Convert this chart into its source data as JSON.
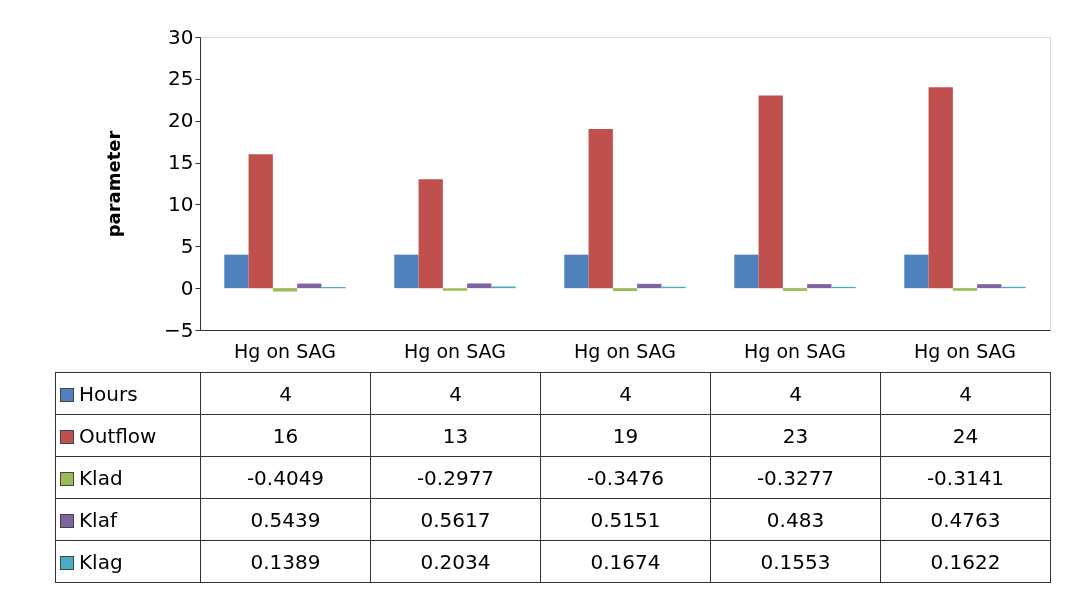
{
  "chart_data": {
    "type": "bar",
    "ylabel": "parameter",
    "categories": [
      "Hg on SAG",
      "Hg on SAG",
      "Hg on SAG",
      "Hg on SAG",
      "Hg on SAG"
    ],
    "series": [
      {
        "name": "Hours",
        "color": "#4f81bd",
        "values": [
          4,
          4,
          4,
          4,
          4
        ]
      },
      {
        "name": "Outflow",
        "color": "#c0504d",
        "values": [
          16,
          13,
          19,
          23,
          24
        ]
      },
      {
        "name": "Klad",
        "color": "#9bbb59",
        "values": [
          -0.4049,
          -0.2977,
          -0.3476,
          -0.3277,
          -0.3141
        ]
      },
      {
        "name": "Klaf",
        "color": "#8064a2",
        "values": [
          0.5439,
          0.5617,
          0.5151,
          0.483,
          0.4763
        ]
      },
      {
        "name": "Klag",
        "color": "#4bacc6",
        "values": [
          0.1389,
          0.2034,
          0.1674,
          0.1553,
          0.1622
        ]
      }
    ],
    "ylim": [
      -5,
      30
    ],
    "yticks": [
      -5,
      0,
      5,
      10,
      15,
      20,
      25,
      30
    ],
    "data_labels": true,
    "legend": "bottom left"
  }
}
